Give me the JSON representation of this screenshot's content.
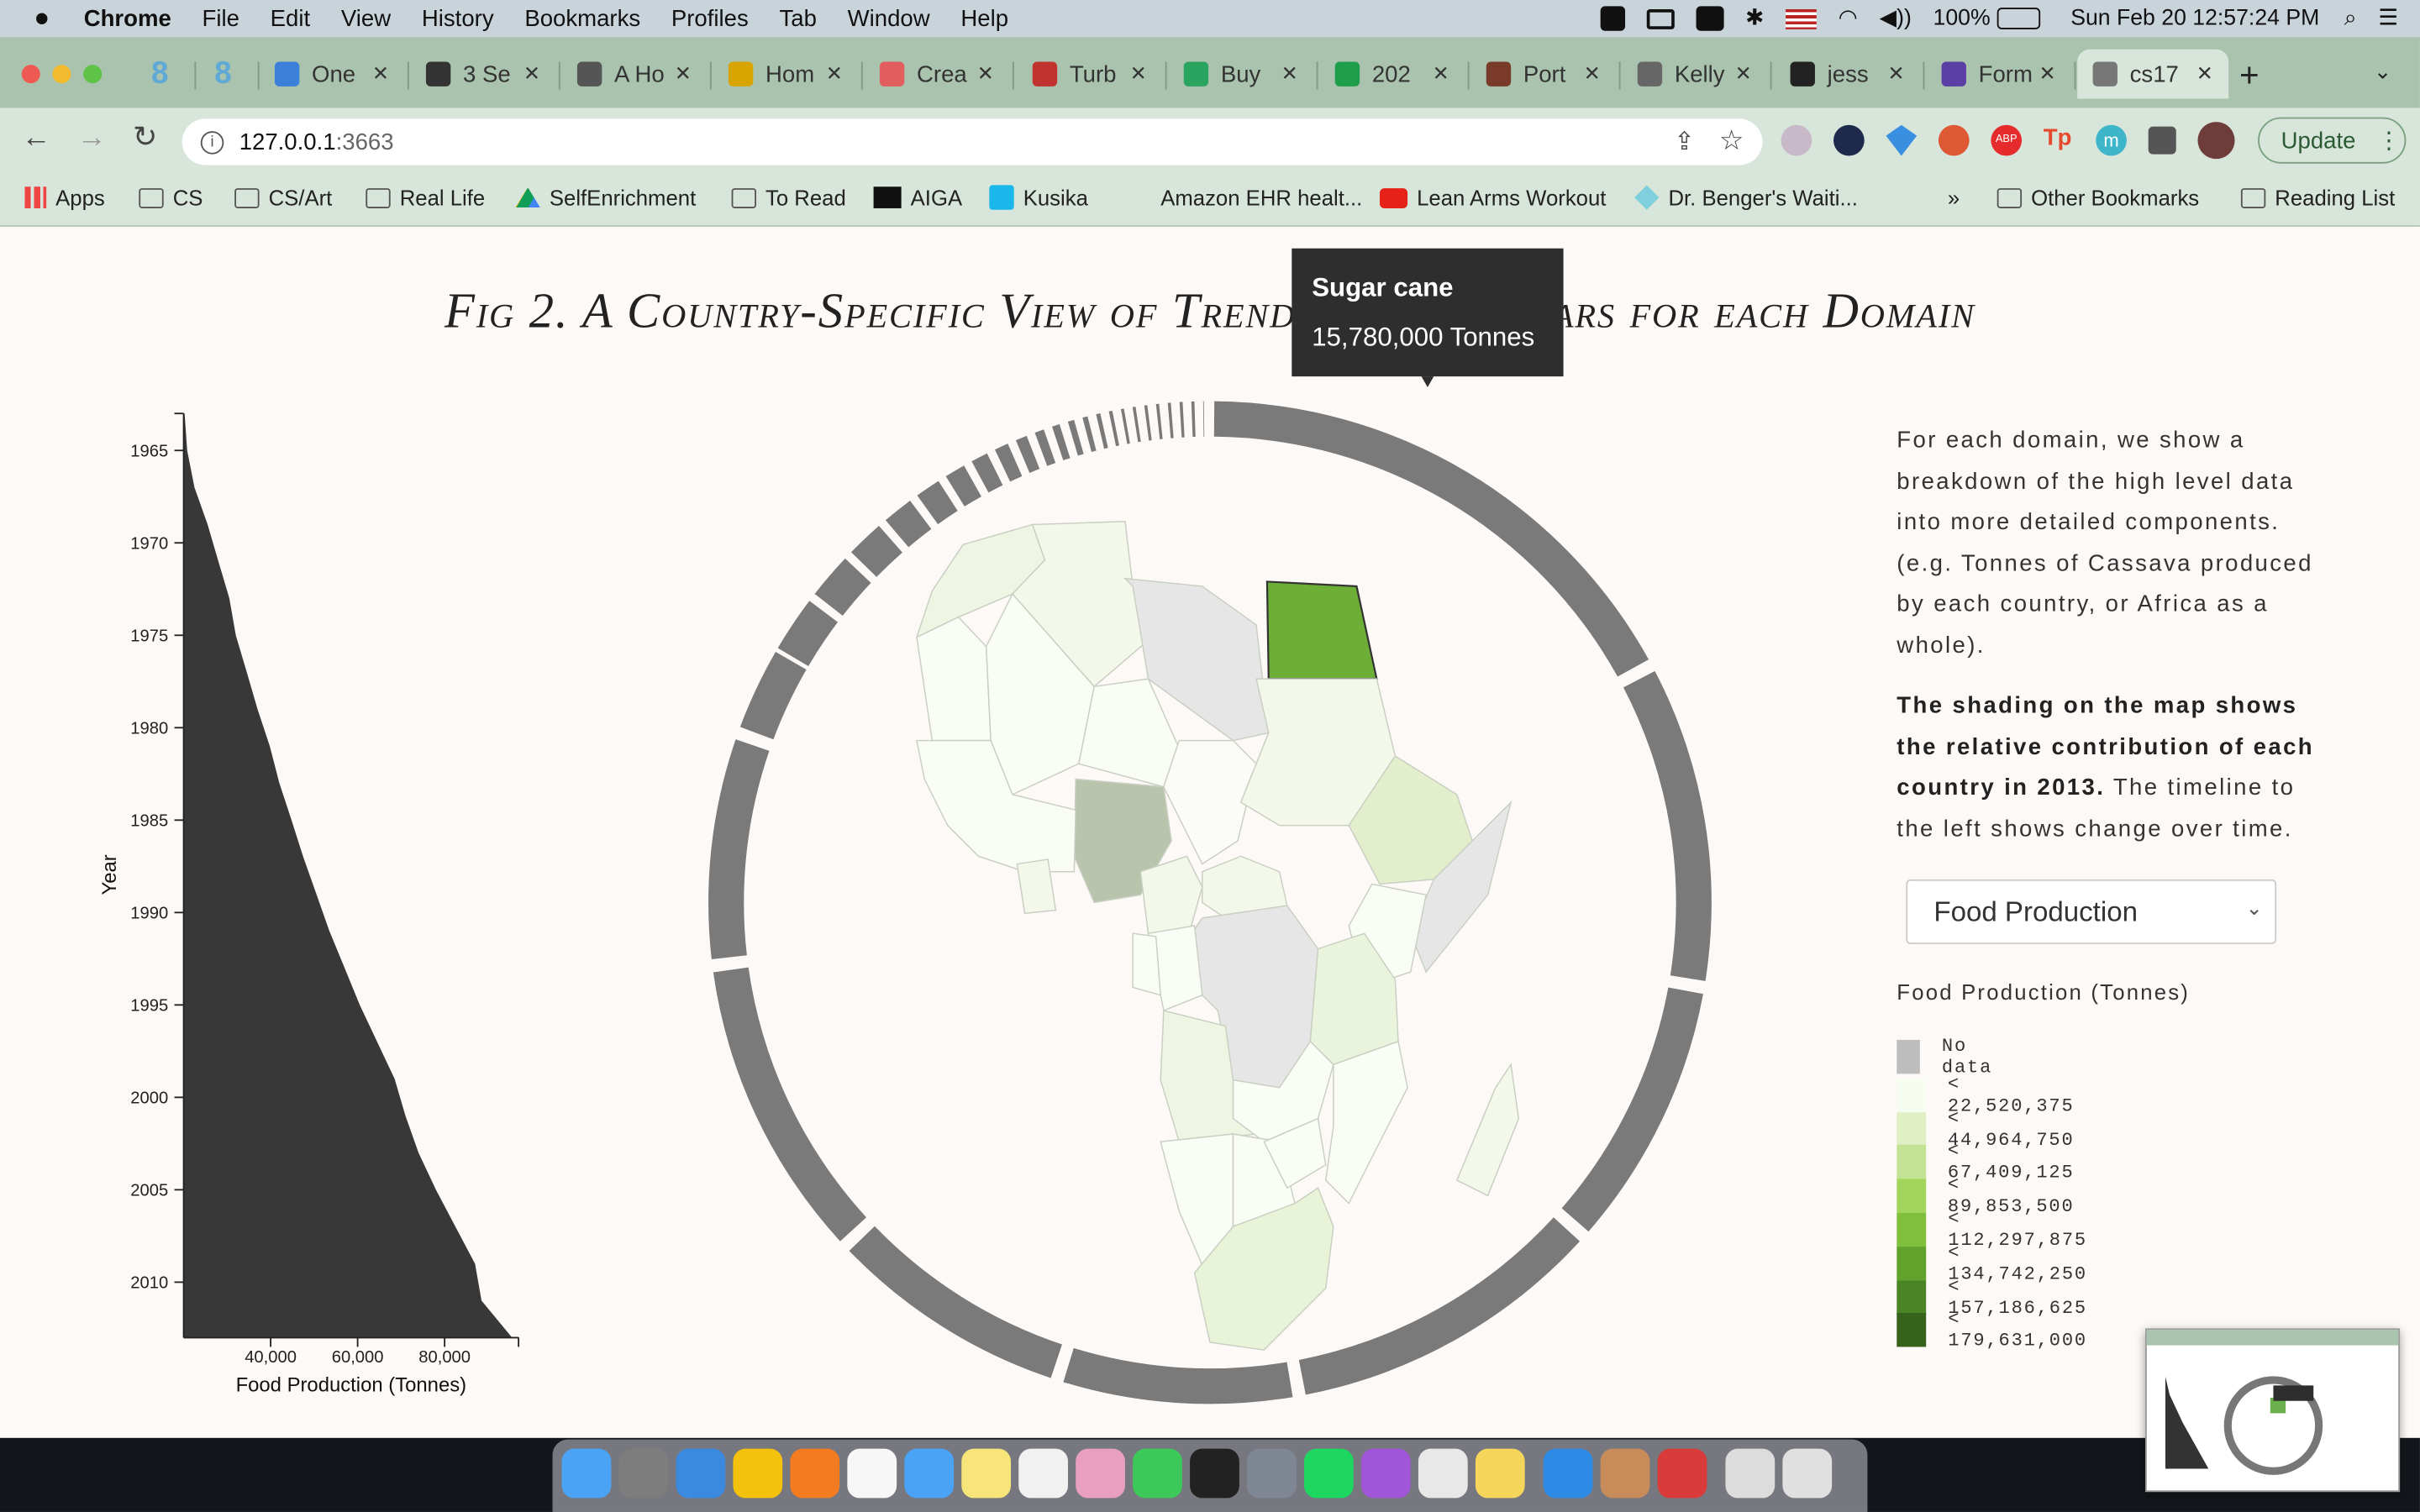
{
  "menubar": {
    "app": "Chrome",
    "items": [
      "File",
      "Edit",
      "View",
      "History",
      "Bookmarks",
      "Profiles",
      "Tab",
      "Window",
      "Help"
    ],
    "battery": "100%",
    "datetime": "Sun Feb 20  12:57:24 PM"
  },
  "tabs": [
    {
      "label": "8"
    },
    {
      "label": "8"
    },
    {
      "label": "One"
    },
    {
      "label": "3 Se"
    },
    {
      "label": "A Ho"
    },
    {
      "label": "Hom"
    },
    {
      "label": "Crea"
    },
    {
      "label": "Turb"
    },
    {
      "label": "Buy"
    },
    {
      "label": "202"
    },
    {
      "label": "Port"
    },
    {
      "label": "Kelly"
    },
    {
      "label": "jess"
    },
    {
      "label": "Form"
    },
    {
      "label": "cs17"
    }
  ],
  "toolbar": {
    "url_host": "127.0.0.1",
    "url_port": ":3663",
    "update_label": "Update"
  },
  "bookmarks": [
    "Apps",
    "CS",
    "CS/Art",
    "Real Life",
    "SelfEnrichment",
    "To Read",
    "AIGA",
    "Kusika",
    "Amazon EHR healt...",
    "Lean Arms Workout",
    "Dr. Benger's Waiti...",
    "»",
    "Other Bookmarks",
    "Reading List"
  ],
  "page": {
    "title": "Fig 2. A Country-Specific View of Trends over 50 Years for each Domain",
    "desc1": "For each domain, we show a breakdown of the high level data into more detailed components. (e.g. Tonnes of Cassava produced by each country, or Africa as a whole).",
    "desc2_bold": "The shading on the map shows the relative contribution of each country in 2013.",
    "desc2_rest": " The timeline to the left shows change over time.",
    "select_value": "Food Production",
    "legend_title": "Food Production (Tonnes)",
    "legend": [
      {
        "label": "No data",
        "color": "#bdbdbd"
      },
      {
        "label": "< 22,520,375",
        "color": "#f7fcf0"
      },
      {
        "label": "< 44,964,750",
        "color": "#e0f0c4"
      },
      {
        "label": "< 67,409,125",
        "color": "#c2e393"
      },
      {
        "label": "< 89,853,500",
        "color": "#a3d55c"
      },
      {
        "label": "< 112,297,875",
        "color": "#7fbf3b"
      },
      {
        "label": "< 134,742,250",
        "color": "#61a22c"
      },
      {
        "label": "< 157,186,625",
        "color": "#4a8424"
      },
      {
        "label": "< 179,631,000",
        "color": "#36621b"
      }
    ],
    "tooltip": {
      "name": "Sugar cane",
      "value": "15,780,000 Tonnes"
    }
  },
  "chart_data": {
    "type": "area",
    "xlabel": "Food Production (Tonnes)",
    "ylabel": "Year",
    "xticks": [
      "40,000",
      "60,000",
      "80,000"
    ],
    "yticks": [
      "1965",
      "1970",
      "1975",
      "1980",
      "1985",
      "1990",
      "1995",
      "2000",
      "2005",
      "2010"
    ],
    "xlim": [
      20000,
      97000
    ],
    "ylim": [
      1963,
      2013
    ],
    "years": [
      1963,
      1965,
      1967,
      1969,
      1971,
      1973,
      1975,
      1977,
      1979,
      1981,
      1983,
      1985,
      1987,
      1989,
      1991,
      1993,
      1995,
      1997,
      1999,
      2001,
      2003,
      2005,
      2007,
      2009,
      2011,
      2013
    ],
    "values": [
      20200,
      20800,
      22500,
      25500,
      28000,
      30500,
      32000,
      34500,
      37000,
      39800,
      42000,
      44800,
      47500,
      50500,
      53500,
      57000,
      60500,
      64500,
      68500,
      71000,
      74000,
      78000,
      82500,
      87000,
      88500,
      95500
    ]
  },
  "ring": {
    "domain": "Food Production",
    "highlight": "Sugar cane"
  }
}
